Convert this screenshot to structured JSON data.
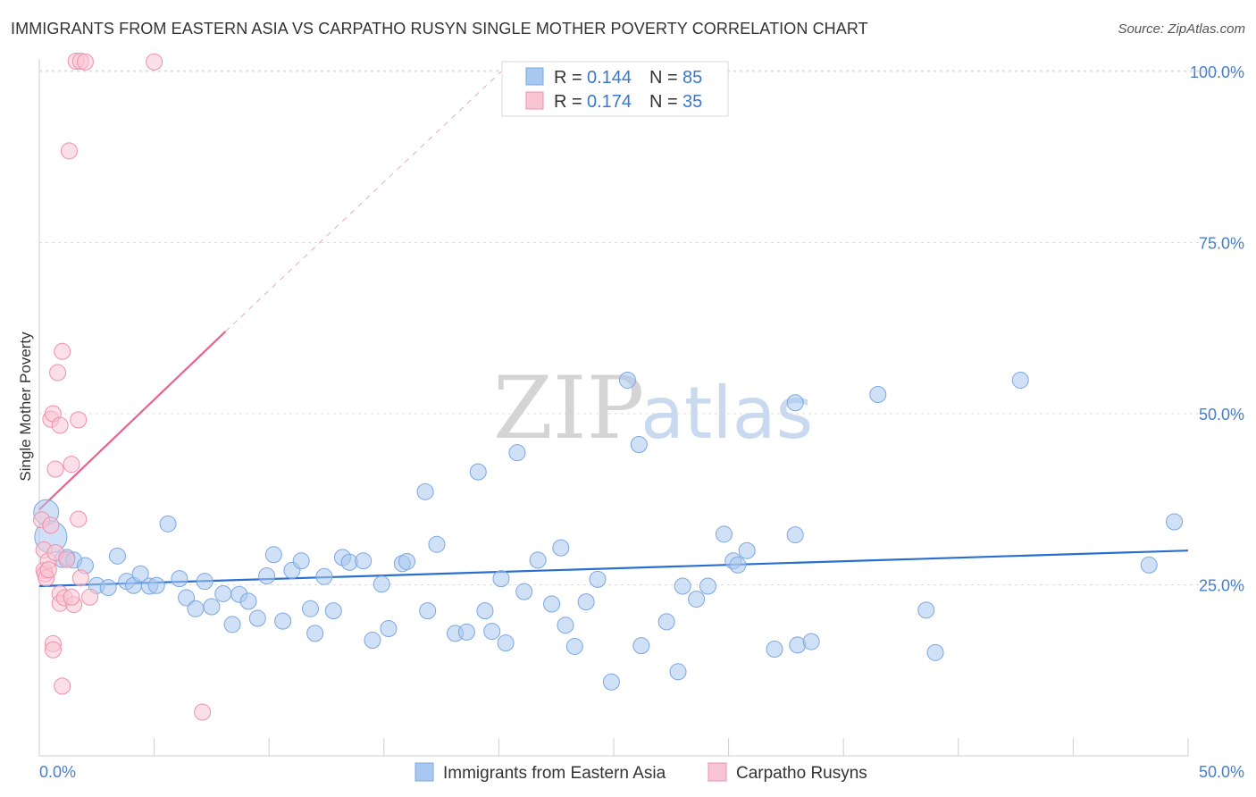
{
  "title": "IMMIGRANTS FROM EASTERN ASIA VS CARPATHO RUSYN SINGLE MOTHER POVERTY CORRELATION CHART",
  "source": "Source: ZipAtlas.com",
  "watermark": {
    "zip": "ZIP",
    "atlas": "atlas"
  },
  "legend_top": [
    {
      "r_label": "R =",
      "r_value": "0.144",
      "n_label": "N =",
      "n_value": "85"
    },
    {
      "r_label": "R =",
      "r_value": "0.174",
      "n_label": "N =",
      "n_value": "35"
    }
  ],
  "chart_data": {
    "type": "scatter",
    "xlabel": "",
    "ylabel": "Single Mother Poverty",
    "xlim": [
      0,
      50
    ],
    "ylim": [
      0,
      100
    ],
    "x_tick_labels": [
      "0.0%",
      "50.0%"
    ],
    "y_ticks": [
      25,
      50,
      75,
      100
    ],
    "y_tick_labels": [
      "25.0%",
      "50.0%",
      "75.0%",
      "100.0%"
    ],
    "grid": true,
    "legend_placement": "bottom",
    "series": [
      {
        "name": "Immigrants from Eastern Asia",
        "color": "#a9c8f0",
        "edge": "#7aa7e0",
        "trend_color": "#2a6fd0",
        "trend": {
          "x0": 0,
          "y0": 24.8,
          "x1": 50,
          "y1": 30.0
        },
        "points": [
          [
            0.3,
            35.6,
            14
          ],
          [
            0.5,
            32.0,
            18
          ],
          [
            1.0,
            28.7,
            9
          ],
          [
            1.2,
            29.0,
            9
          ],
          [
            1.5,
            28.6,
            9
          ],
          [
            2.0,
            27.8,
            9
          ],
          [
            2.5,
            24.9,
            9
          ],
          [
            3.0,
            24.6,
            9
          ],
          [
            3.4,
            29.2,
            9
          ],
          [
            3.8,
            25.5,
            9
          ],
          [
            4.1,
            24.9,
            9
          ],
          [
            4.4,
            26.6,
            9
          ],
          [
            4.8,
            24.8,
            9
          ],
          [
            5.1,
            24.9,
            9
          ],
          [
            5.6,
            33.9,
            9
          ],
          [
            6.1,
            25.9,
            9
          ],
          [
            6.4,
            23.1,
            9
          ],
          [
            6.8,
            21.5,
            9
          ],
          [
            7.2,
            25.5,
            9
          ],
          [
            7.5,
            21.8,
            9
          ],
          [
            8.0,
            23.7,
            9
          ],
          [
            8.4,
            19.2,
            9
          ],
          [
            8.7,
            23.6,
            9
          ],
          [
            9.1,
            22.6,
            9
          ],
          [
            9.5,
            20.1,
            9
          ],
          [
            9.9,
            26.3,
            9
          ],
          [
            10.2,
            29.4,
            9
          ],
          [
            10.6,
            19.7,
            9
          ],
          [
            11.0,
            27.1,
            9
          ],
          [
            11.4,
            28.5,
            9
          ],
          [
            11.8,
            21.5,
            9
          ],
          [
            12.0,
            17.9,
            9
          ],
          [
            12.4,
            26.2,
            9
          ],
          [
            12.8,
            21.2,
            9
          ],
          [
            13.2,
            29.0,
            9
          ],
          [
            13.5,
            28.3,
            9
          ],
          [
            14.1,
            28.5,
            9
          ],
          [
            14.5,
            16.9,
            9
          ],
          [
            14.9,
            25.1,
            9
          ],
          [
            15.2,
            18.6,
            9
          ],
          [
            15.8,
            28.1,
            9
          ],
          [
            16.0,
            28.4,
            9
          ],
          [
            16.8,
            38.6,
            9
          ],
          [
            16.9,
            21.2,
            9
          ],
          [
            17.3,
            30.9,
            9
          ],
          [
            18.1,
            17.9,
            9
          ],
          [
            18.6,
            18.1,
            9
          ],
          [
            19.1,
            41.5,
            9
          ],
          [
            19.4,
            21.2,
            9
          ],
          [
            19.7,
            18.2,
            9
          ],
          [
            20.1,
            25.9,
            9
          ],
          [
            20.3,
            16.5,
            9
          ],
          [
            20.8,
            44.3,
            9
          ],
          [
            21.1,
            24.0,
            9
          ],
          [
            21.7,
            28.6,
            9
          ],
          [
            22.3,
            22.2,
            9
          ],
          [
            22.7,
            30.4,
            9
          ],
          [
            22.9,
            19.1,
            9
          ],
          [
            23.3,
            16.0,
            9
          ],
          [
            23.8,
            22.5,
            9
          ],
          [
            24.3,
            25.8,
            9
          ],
          [
            24.9,
            10.8,
            9
          ],
          [
            25.6,
            54.9,
            9
          ],
          [
            26.1,
            45.5,
            9
          ],
          [
            26.2,
            16.1,
            9
          ],
          [
            27.3,
            19.6,
            9
          ],
          [
            27.8,
            12.3,
            9
          ],
          [
            28.0,
            24.8,
            9
          ],
          [
            28.6,
            22.9,
            9
          ],
          [
            29.1,
            24.8,
            9
          ],
          [
            29.8,
            32.4,
            9
          ],
          [
            30.2,
            28.5,
            9
          ],
          [
            30.4,
            27.9,
            9
          ],
          [
            30.8,
            30.0,
            9
          ],
          [
            32.0,
            15.6,
            9
          ],
          [
            32.9,
            51.6,
            9
          ],
          [
            32.9,
            32.3,
            9
          ],
          [
            33.0,
            16.2,
            9
          ],
          [
            33.6,
            16.7,
            9
          ],
          [
            36.5,
            52.8,
            9
          ],
          [
            38.6,
            21.3,
            9
          ],
          [
            39.0,
            15.1,
            9
          ],
          [
            42.7,
            54.9,
            9
          ],
          [
            48.3,
            27.9,
            9
          ],
          [
            49.4,
            34.2,
            9
          ]
        ]
      },
      {
        "name": "Carpatho Rusyns",
        "color": "#f9c5d4",
        "edge": "#ee90ad",
        "trend_color": "#e8628d",
        "trend": {
          "x0": 0,
          "y0": 36.0,
          "x1": 8.1,
          "y1": 62.0
        },
        "trend_ext": {
          "x0": 8.1,
          "y0": 62.0,
          "x1": 20.1,
          "y1": 100.0
        },
        "points": [
          [
            0.1,
            34.5,
            9
          ],
          [
            0.2,
            30.1,
            9
          ],
          [
            0.2,
            27.1,
            9
          ],
          [
            0.25,
            26.6,
            9
          ],
          [
            0.3,
            26.0,
            9
          ],
          [
            0.4,
            28.5,
            9
          ],
          [
            0.4,
            27.2,
            9
          ],
          [
            0.5,
            33.7,
            9
          ],
          [
            0.6,
            16.4,
            9
          ],
          [
            0.6,
            15.5,
            9
          ],
          [
            0.5,
            49.2,
            9
          ],
          [
            0.6,
            50.0,
            9
          ],
          [
            0.7,
            41.9,
            9
          ],
          [
            0.7,
            29.7,
            9
          ],
          [
            0.8,
            56.0,
            9
          ],
          [
            0.9,
            48.3,
            9
          ],
          [
            0.9,
            23.7,
            9
          ],
          [
            0.9,
            22.3,
            9
          ],
          [
            1.0,
            59.1,
            9
          ],
          [
            1.0,
            10.2,
            9
          ],
          [
            1.1,
            23.1,
            9
          ],
          [
            1.2,
            28.7,
            9
          ],
          [
            1.3,
            88.4,
            9
          ],
          [
            1.4,
            42.6,
            9
          ],
          [
            1.5,
            22.1,
            9
          ],
          [
            1.7,
            49.1,
            9
          ],
          [
            1.7,
            34.6,
            9
          ],
          [
            1.8,
            26.0,
            9
          ],
          [
            1.4,
            23.2,
            9
          ],
          [
            2.2,
            23.2,
            9
          ],
          [
            1.6,
            101.5,
            9
          ],
          [
            1.8,
            101.5,
            9
          ],
          [
            2.0,
            101.4,
            9
          ],
          [
            5.0,
            101.4,
            9
          ],
          [
            7.1,
            6.4,
            9
          ]
        ]
      }
    ]
  }
}
